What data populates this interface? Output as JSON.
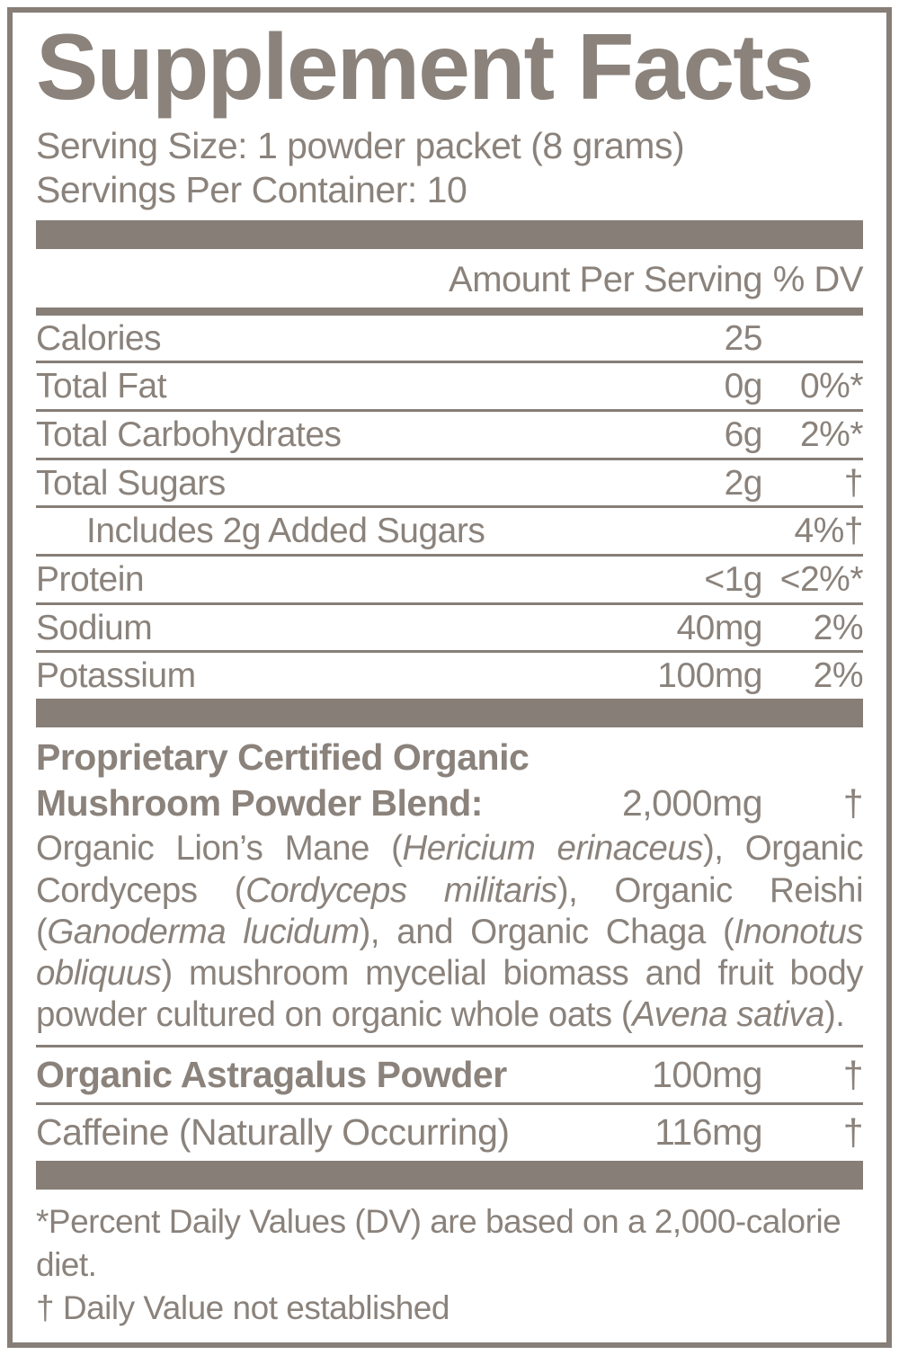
{
  "colors": {
    "accent": "#867e77",
    "ink": "#8a827b",
    "background": "#ffffff"
  },
  "label": {
    "title": "Supplement Facts",
    "serving_size": "Serving Size: 1 powder packet (8 grams)",
    "servings_per_container": "Servings Per Container: 10"
  },
  "table": {
    "header": {
      "amount": "Amount Per Serving",
      "dv": "% DV"
    },
    "rows": [
      {
        "label": "Calories",
        "amount": "25",
        "dv": ""
      },
      {
        "label": "Total Fat",
        "amount": "0g",
        "dv": "0%*"
      },
      {
        "label": "Total Carbohydrates",
        "amount": "6g",
        "dv": "2%*"
      },
      {
        "label": "Total Sugars",
        "amount": "2g",
        "dv": "†"
      },
      {
        "label": "Includes 2g Added Sugars",
        "amount": "",
        "dv": "4%†"
      },
      {
        "label": "Protein",
        "amount": "<1g",
        "dv": "<2%*"
      },
      {
        "label": "Sodium",
        "amount": "40mg",
        "dv": "2%"
      },
      {
        "label": "Potassium",
        "amount": "100mg",
        "dv": "2%"
      }
    ]
  },
  "blend": {
    "title_line1": "Proprietary Certified Organic",
    "title_line2": "Mushroom Powder Blend:",
    "amount": "2,000mg",
    "dv": "†",
    "description": [
      {
        "text": "Organic Lion’s Mane (",
        "italic": false
      },
      {
        "text": "Hericium erinaceus",
        "italic": true
      },
      {
        "text": "), Organic Cordyceps (",
        "italic": false
      },
      {
        "text": "Cordyceps militaris",
        "italic": true
      },
      {
        "text": "), Organic Reishi (",
        "italic": false
      },
      {
        "text": "Ganoderma lucidum",
        "italic": true
      },
      {
        "text": "), and Organic Chaga (",
        "italic": false
      },
      {
        "text": "Inonotus obliquus",
        "italic": true
      },
      {
        "text": ") mushroom mycelial biomass and fruit body powder cultured on organic whole oats (",
        "italic": false
      },
      {
        "text": "Avena sativa",
        "italic": true
      },
      {
        "text": ").",
        "italic": false
      }
    ]
  },
  "extra_rows": [
    {
      "label": "Organic Astragalus Powder",
      "amount": "100mg",
      "dv": "†"
    },
    {
      "label": "Caffeine (Naturally Occurring)",
      "amount": "116mg",
      "dv": "†"
    }
  ],
  "footnotes": {
    "percent_dv": "*Percent Daily Values (DV) are based on a 2,000-calorie diet.",
    "dagger": "† Daily Value not established"
  }
}
